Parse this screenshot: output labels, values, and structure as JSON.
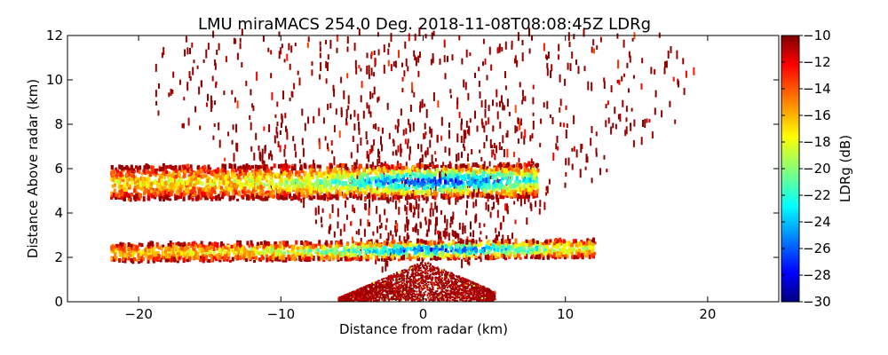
{
  "chart_data": {
    "type": "heatmap",
    "title": "LMU miraMACS 254.0 Deg. 2018-11-08T08:08:45Z  LDRg",
    "xlabel": "Distance from radar (km)",
    "ylabel": "Distance Above radar  (km)",
    "xlim": [
      -25,
      25
    ],
    "ylim": [
      0,
      12
    ],
    "xticks": [
      "-20",
      "-10",
      "0",
      "10",
      "20"
    ],
    "xtick_values": [
      -20,
      -10,
      0,
      10,
      20
    ],
    "yticks": [
      "0",
      "2",
      "4",
      "6",
      "8",
      "10",
      "12"
    ],
    "ytick_values": [
      0,
      2,
      4,
      6,
      8,
      10,
      12
    ],
    "grid": false,
    "colorbar": {
      "label": "LDRg (dB)",
      "range": [
        -30,
        -10
      ],
      "ticks": [
        "-10",
        "-12",
        "-14",
        "-16",
        "-18",
        "-20",
        "-22",
        "-24",
        "-26",
        "-28",
        "-30"
      ],
      "tick_values": [
        -10,
        -12,
        -14,
        -16,
        -18,
        -20,
        -22,
        -24,
        -26,
        -28,
        -30
      ],
      "colormap": "jet",
      "placement": "right"
    },
    "features": [
      {
        "name": "upper cloud layer",
        "x_range": [
          -22,
          8
        ],
        "height_km": [
          4.5,
          6.0
        ],
        "ldr_core_db": -27,
        "ldr_edge_db": -12
      },
      {
        "name": "lower melting layer",
        "x_range": [
          -22,
          12
        ],
        "height_km": [
          1.7,
          2.5
        ],
        "ldr_core_db": -27,
        "ldr_edge_db": -12
      },
      {
        "name": "near-radar clutter",
        "x_range": [
          -6,
          5
        ],
        "height_km": [
          0,
          2
        ],
        "ldr_db": -10
      },
      {
        "name": "sparse noise",
        "x_range": [
          -22,
          21
        ],
        "height_km": [
          0,
          12
        ],
        "ldr_db": -10
      }
    ]
  }
}
